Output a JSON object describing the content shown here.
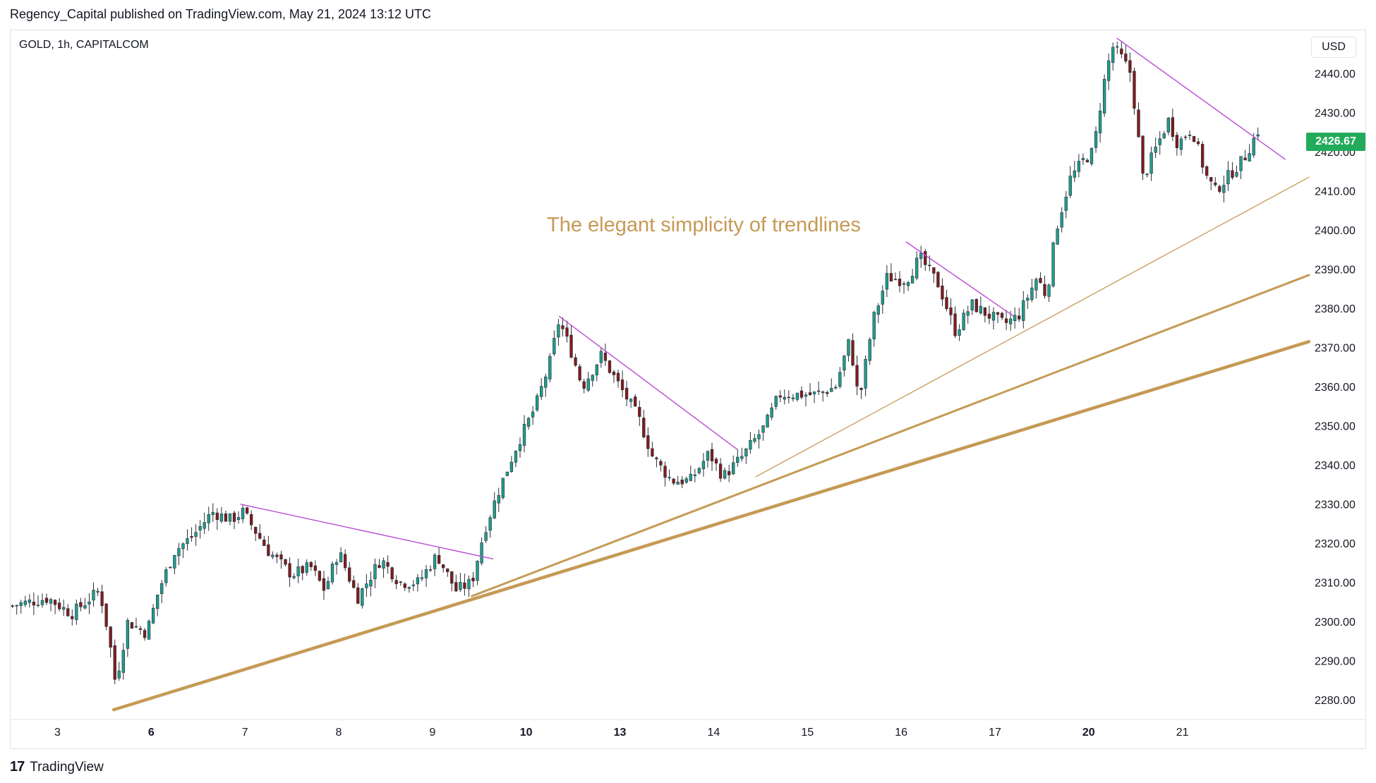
{
  "header": {
    "text": "Regency_Capital published on TradingView.com, May 21, 2024 13:12 UTC"
  },
  "symbol": "GOLD, 1h, CAPITALCOM",
  "currency": "USD",
  "last_price": "2426.67",
  "annotation": "The elegant simplicity of trendlines",
  "footer": {
    "logo": "17",
    "brand": "TradingView"
  },
  "colors": {
    "up": "#1f9d8c",
    "down": "#7f1d1d",
    "wick": "#2a2e39",
    "trendline": "#c59a55",
    "resistance": "#b94bd6",
    "badge": "#22ab5a"
  },
  "chart_data": {
    "type": "candlestick",
    "ylim": [
      2275,
      2451
    ],
    "yticks": [
      2280,
      2290,
      2300,
      2310,
      2320,
      2330,
      2340,
      2350,
      2360,
      2370,
      2380,
      2390,
      2400,
      2410,
      2420,
      2430,
      2440
    ],
    "ytick_labels": [
      "2280.00",
      "2290.00",
      "2300.00",
      "2310.00",
      "2320.00",
      "2330.00",
      "2340.00",
      "2350.00",
      "2360.00",
      "2370.00",
      "2380.00",
      "2390.00",
      "2400.00",
      "2410.00",
      "2420.00",
      "2430.00",
      "2440.00"
    ],
    "xticks": [
      "3",
      "6",
      "7",
      "8",
      "9",
      "10",
      "13",
      "14",
      "15",
      "16",
      "17",
      "20",
      "21"
    ],
    "xtick_bold": [
      "6",
      "10",
      "13",
      "20"
    ],
    "x_range": [
      0,
      13.85
    ],
    "xtick_positions": [
      0.5,
      1.5,
      2.5,
      3.5,
      4.5,
      5.5,
      6.5,
      7.5,
      8.5,
      9.5,
      10.5,
      11.5,
      12.5
    ],
    "pivots": [
      [
        0.0,
        2304
      ],
      [
        0.4,
        2306
      ],
      [
        0.65,
        2302
      ],
      [
        0.95,
        2308
      ],
      [
        1.05,
        2296
      ],
      [
        1.12,
        2284
      ],
      [
        1.25,
        2300
      ],
      [
        1.45,
        2297
      ],
      [
        1.58,
        2308
      ],
      [
        1.75,
        2318
      ],
      [
        1.95,
        2322
      ],
      [
        2.15,
        2328
      ],
      [
        2.35,
        2326
      ],
      [
        2.48,
        2328
      ],
      [
        2.75,
        2318
      ],
      [
        3.0,
        2312
      ],
      [
        3.2,
        2314
      ],
      [
        3.35,
        2308
      ],
      [
        3.5,
        2318
      ],
      [
        3.7,
        2306
      ],
      [
        3.95,
        2316
      ],
      [
        4.15,
        2310
      ],
      [
        4.35,
        2310
      ],
      [
        4.55,
        2317
      ],
      [
        4.75,
        2308
      ],
      [
        4.92,
        2310
      ],
      [
        5.05,
        2323
      ],
      [
        5.2,
        2333
      ],
      [
        5.4,
        2345
      ],
      [
        5.6,
        2355
      ],
      [
        5.75,
        2366
      ],
      [
        5.85,
        2377
      ],
      [
        5.98,
        2369
      ],
      [
        6.1,
        2360
      ],
      [
        6.3,
        2368
      ],
      [
        6.5,
        2360
      ],
      [
        6.7,
        2352
      ],
      [
        6.85,
        2342
      ],
      [
        7.05,
        2336
      ],
      [
        7.25,
        2336
      ],
      [
        7.45,
        2343
      ],
      [
        7.6,
        2337
      ],
      [
        7.8,
        2342
      ],
      [
        8.05,
        2350
      ],
      [
        8.2,
        2358
      ],
      [
        8.4,
        2358
      ],
      [
        8.6,
        2358
      ],
      [
        8.8,
        2360
      ],
      [
        8.95,
        2372
      ],
      [
        9.05,
        2356
      ],
      [
        9.2,
        2377
      ],
      [
        9.35,
        2388
      ],
      [
        9.55,
        2387
      ],
      [
        9.7,
        2393
      ],
      [
        9.9,
        2386
      ],
      [
        10.08,
        2374
      ],
      [
        10.25,
        2381
      ],
      [
        10.45,
        2378
      ],
      [
        10.6,
        2376
      ],
      [
        10.75,
        2378
      ],
      [
        10.95,
        2388
      ],
      [
        11.05,
        2383
      ],
      [
        11.15,
        2400
      ],
      [
        11.3,
        2413
      ],
      [
        11.45,
        2418
      ],
      [
        11.55,
        2420
      ],
      [
        11.65,
        2436
      ],
      [
        11.75,
        2447
      ],
      [
        11.85,
        2444
      ],
      [
        11.95,
        2440
      ],
      [
        12.08,
        2413
      ],
      [
        12.2,
        2420
      ],
      [
        12.35,
        2428
      ],
      [
        12.45,
        2422
      ],
      [
        12.6,
        2426
      ],
      [
        12.75,
        2414
      ],
      [
        12.85,
        2410
      ],
      [
        13.0,
        2414
      ],
      [
        13.15,
        2418
      ],
      [
        13.32,
        2426
      ]
    ],
    "trendlines": [
      {
        "from": [
          1.1,
          2277.5
        ],
        "to": [
          13.85,
          2371.5
        ],
        "weight": "heavy"
      },
      {
        "from": [
          4.92,
          2306.5
        ],
        "to": [
          13.85,
          2388.5
        ],
        "weight": "medium"
      },
      {
        "from": [
          7.95,
          2337
        ],
        "to": [
          13.85,
          2413.5
        ],
        "weight": "light"
      }
    ],
    "resistance_lines": [
      {
        "from": [
          2.45,
          2330
        ],
        "to": [
          5.15,
          2316
        ]
      },
      {
        "from": [
          5.85,
          2378
        ],
        "to": [
          7.75,
          2344
        ]
      },
      {
        "from": [
          9.55,
          2397
        ],
        "to": [
          10.7,
          2378
        ]
      },
      {
        "from": [
          11.8,
          2449
        ],
        "to": [
          13.6,
          2418
        ]
      }
    ]
  }
}
